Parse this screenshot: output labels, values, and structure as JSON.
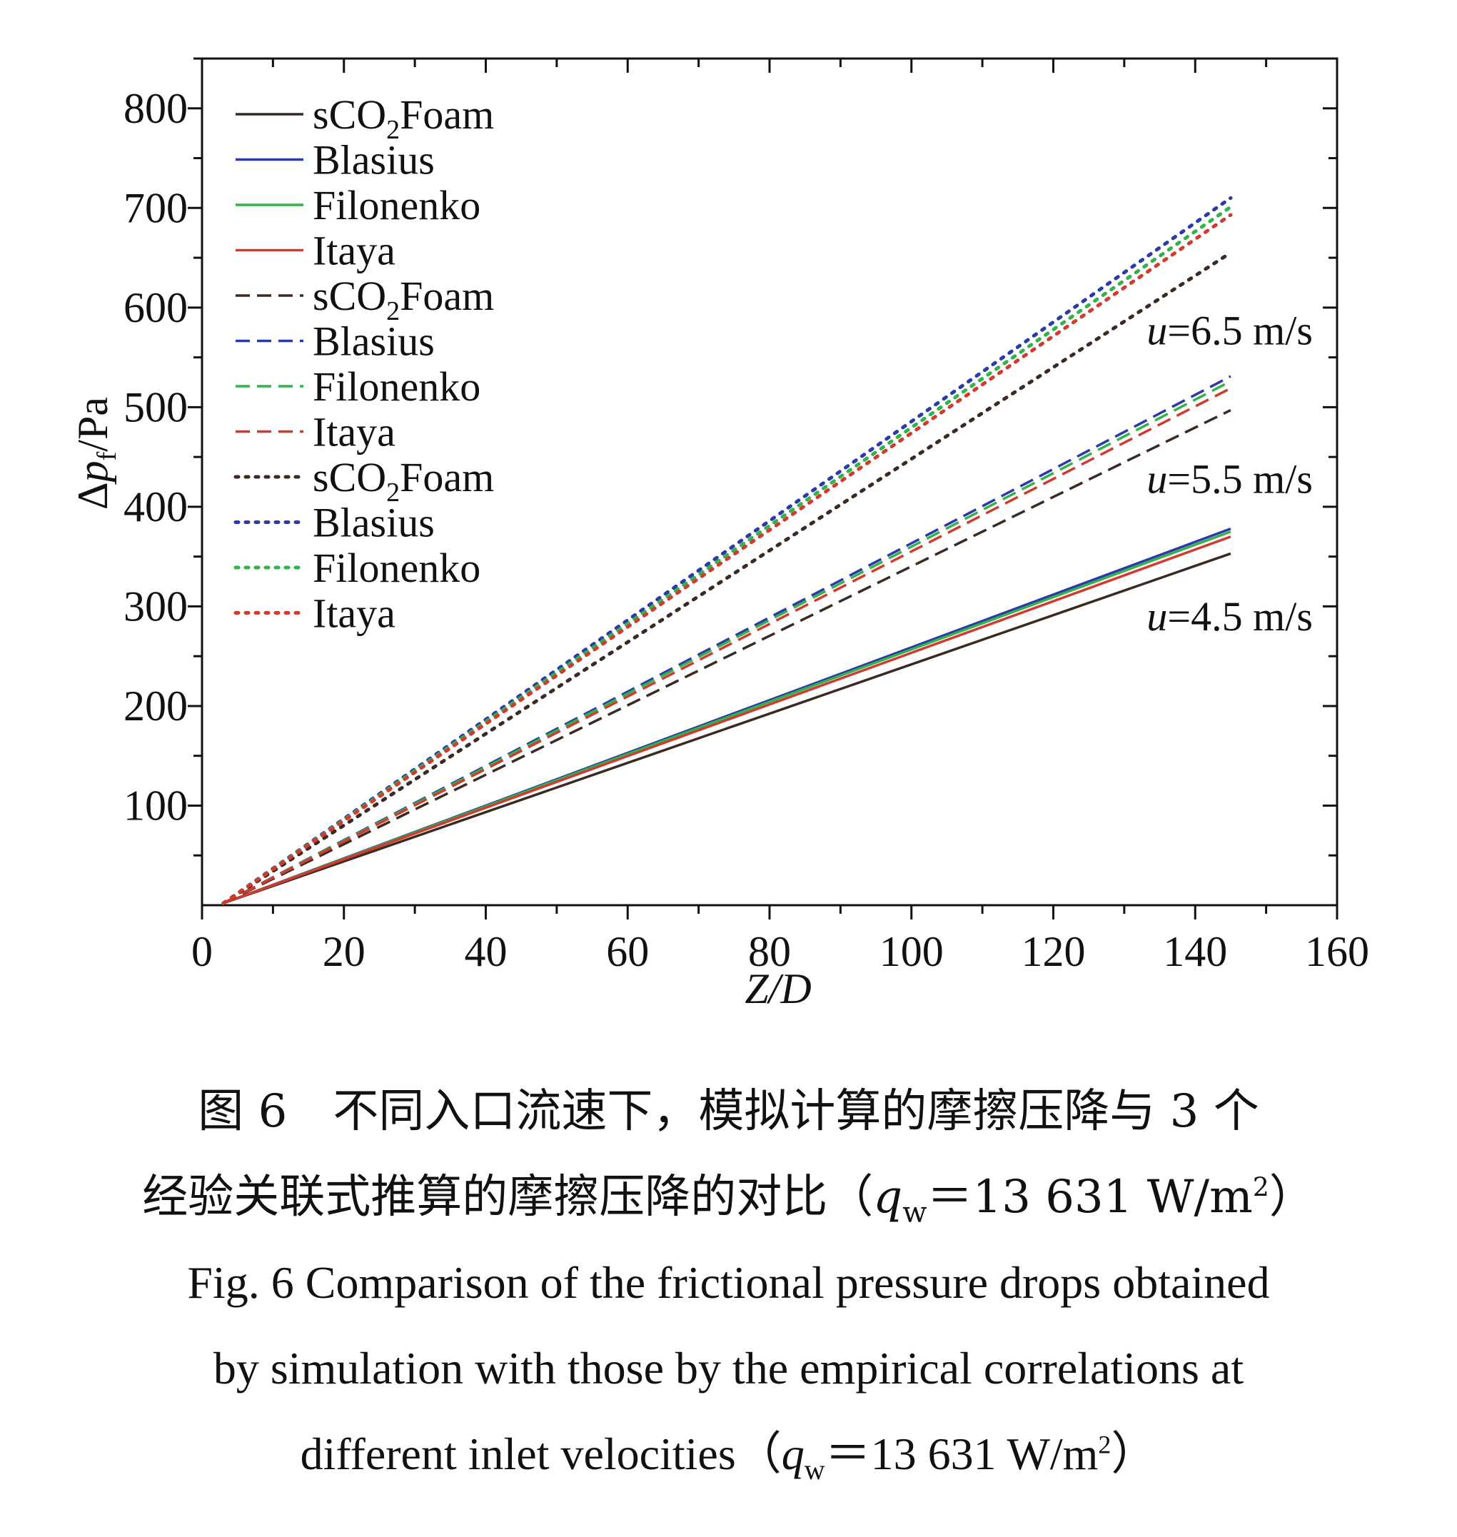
{
  "chart_data": {
    "type": "line",
    "xlabel": {
      "pre": "",
      "italic": "Z/D"
    },
    "ylabel": {
      "delta": "Δ",
      "p": "p",
      "sub": "f",
      "unit": "/Pa"
    },
    "xlim": [
      0,
      160
    ],
    "ylim": [
      0,
      850
    ],
    "xticks": [
      0,
      20,
      40,
      60,
      80,
      100,
      120,
      140,
      160
    ],
    "yticks": [
      100,
      200,
      300,
      400,
      500,
      600,
      700,
      800
    ],
    "grid": false,
    "legend_position": "top-left",
    "colors": {
      "sCO2Foam": "#3a2a22",
      "Blasius": "#2c3aa8",
      "Filonenko": "#2fb34a",
      "Itaya": "#d23a2e"
    },
    "legend": [
      {
        "label": "sCO2Foam",
        "base": "sCO",
        "sub": "2",
        "rest": "Foam",
        "color": "#3a2a22",
        "dash": "solid"
      },
      {
        "label": "Blasius",
        "base": "Blasius",
        "sub": "",
        "rest": "",
        "color": "#2c3aa8",
        "dash": "solid"
      },
      {
        "label": "Filonenko",
        "base": "Filonenko",
        "sub": "",
        "rest": "",
        "color": "#2fb34a",
        "dash": "solid"
      },
      {
        "label": "Itaya",
        "base": "Itaya",
        "sub": "",
        "rest": "",
        "color": "#d23a2e",
        "dash": "solid"
      },
      {
        "label": "sCO2Foam",
        "base": "sCO",
        "sub": "2",
        "rest": "Foam",
        "color": "#3a2a22",
        "dash": "dashed"
      },
      {
        "label": "Blasius",
        "base": "Blasius",
        "sub": "",
        "rest": "",
        "color": "#2c3aa8",
        "dash": "dashed"
      },
      {
        "label": "Filonenko",
        "base": "Filonenko",
        "sub": "",
        "rest": "",
        "color": "#2fb34a",
        "dash": "dashed"
      },
      {
        "label": "Itaya",
        "base": "Itaya",
        "sub": "",
        "rest": "",
        "color": "#d23a2e",
        "dash": "dashed"
      },
      {
        "label": "sCO2Foam",
        "base": "sCO",
        "sub": "2",
        "rest": "Foam",
        "color": "#3a2a22",
        "dash": "dotted"
      },
      {
        "label": "Blasius",
        "base": "Blasius",
        "sub": "",
        "rest": "",
        "color": "#2c3aa8",
        "dash": "dotted"
      },
      {
        "label": "Filonenko",
        "base": "Filonenko",
        "sub": "",
        "rest": "",
        "color": "#2fb34a",
        "dash": "dotted"
      },
      {
        "label": "Itaya",
        "base": "Itaya",
        "sub": "",
        "rest": "",
        "color": "#d23a2e",
        "dash": "dotted"
      }
    ],
    "series": [
      {
        "name": "sCO2Foam",
        "dash": "solid",
        "color": "#3a2a22",
        "x": [
          3,
          145
        ],
        "y": [
          2,
          353
        ]
      },
      {
        "name": "Blasius",
        "dash": "solid",
        "color": "#2c3aa8",
        "x": [
          3,
          145
        ],
        "y": [
          2,
          378
        ]
      },
      {
        "name": "Filonenko",
        "dash": "solid",
        "color": "#2fb34a",
        "x": [
          3,
          145
        ],
        "y": [
          2,
          375
        ]
      },
      {
        "name": "Itaya",
        "dash": "solid",
        "color": "#d23a2e",
        "x": [
          3,
          145
        ],
        "y": [
          2,
          370
        ]
      },
      {
        "name": "sCO2Foam",
        "dash": "dashed",
        "color": "#3a2a22",
        "x": [
          3,
          145
        ],
        "y": [
          2,
          497
        ]
      },
      {
        "name": "Blasius",
        "dash": "dashed",
        "color": "#2c3aa8",
        "x": [
          3,
          145
        ],
        "y": [
          2,
          531
        ]
      },
      {
        "name": "Filonenko",
        "dash": "dashed",
        "color": "#2fb34a",
        "x": [
          3,
          145
        ],
        "y": [
          2,
          526
        ]
      },
      {
        "name": "Itaya",
        "dash": "dashed",
        "color": "#d23a2e",
        "x": [
          3,
          145
        ],
        "y": [
          2,
          519
        ]
      },
      {
        "name": "sCO2Foam",
        "dash": "dotted",
        "color": "#3a2a22",
        "x": [
          3,
          145
        ],
        "y": [
          2,
          655
        ]
      },
      {
        "name": "Blasius",
        "dash": "dotted",
        "color": "#2c3aa8",
        "x": [
          3,
          145
        ],
        "y": [
          2,
          710
        ]
      },
      {
        "name": "Filonenko",
        "dash": "dotted",
        "color": "#2fb34a",
        "x": [
          3,
          145
        ],
        "y": [
          2,
          701
        ]
      },
      {
        "name": "Itaya",
        "dash": "dotted",
        "color": "#d23a2e",
        "x": [
          3,
          145
        ],
        "y": [
          2,
          693
        ]
      }
    ],
    "annotations": [
      {
        "var": "u",
        "text": "=6.5 m/s",
        "x": 145,
        "y": 563
      },
      {
        "var": "u",
        "text": "=5.5 m/s",
        "x": 145,
        "y": 414
      },
      {
        "var": "u",
        "text": "=4.5 m/s",
        "x": 145,
        "y": 276
      }
    ]
  },
  "caption": {
    "cn_line1": "图 6　不同入口流速下，模拟计算的摩擦压降与 3 个",
    "cn_line2_pre": "经验关联式推算的摩擦压降的对比（",
    "cn_line2_var": "q",
    "cn_line2_sub": "w",
    "cn_line2_mid": "＝13 631 W/m",
    "cn_line2_sup": "2",
    "cn_line2_post": "）",
    "en_line1": "Fig. 6  Comparison of the frictional pressure drops obtained",
    "en_line2": "by simulation with those by the empirical correlations at",
    "en_line3_pre": "different inlet velocities（",
    "en_line3_var": "q",
    "en_line3_sub": "w",
    "en_line3_mid": "＝13 631 W/m",
    "en_line3_sup": "2",
    "en_line3_post": "）"
  }
}
